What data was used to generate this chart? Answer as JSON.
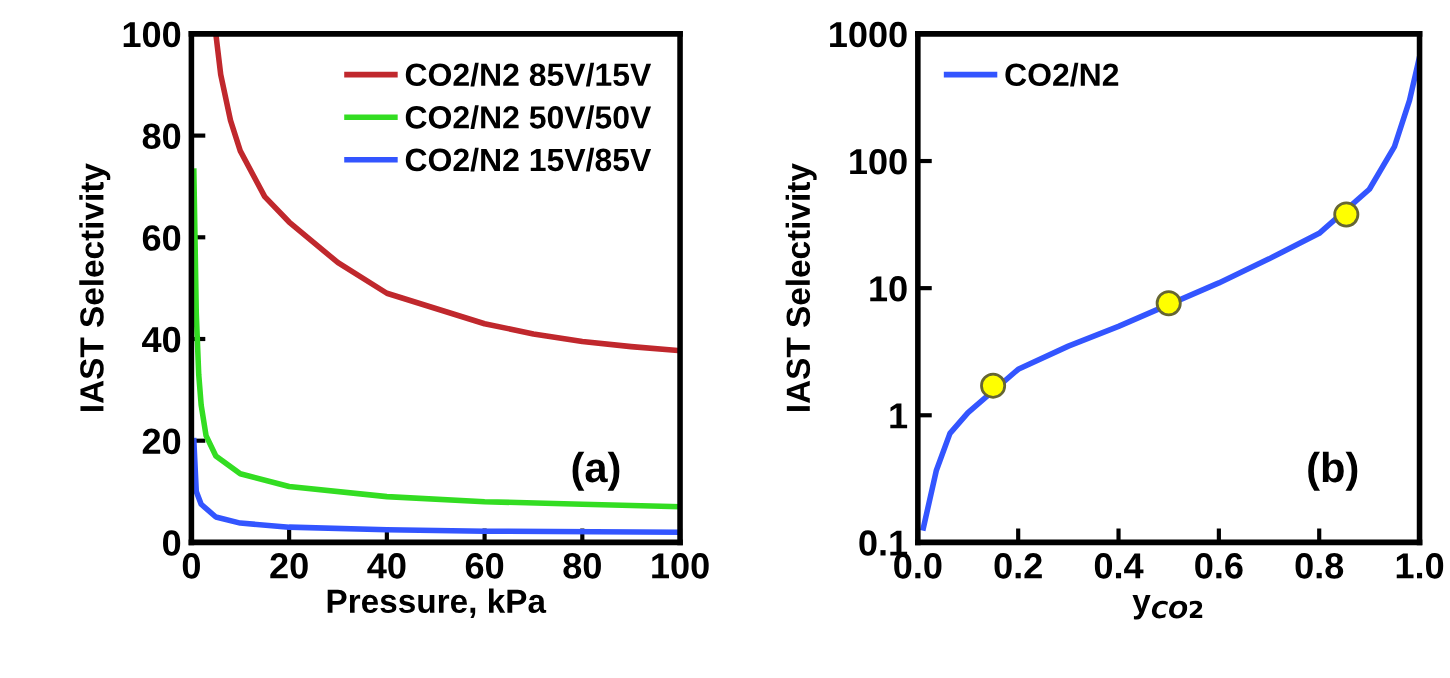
{
  "chart_data": [
    {
      "type": "line",
      "xlabel": "Pressure, kPa",
      "ylabel": "IAST Selectivity",
      "xlim": [
        0,
        100
      ],
      "ylim": [
        0,
        100
      ],
      "xticks": [
        0,
        20,
        40,
        60,
        80,
        100
      ],
      "yticks": [
        0,
        20,
        40,
        60,
        80,
        100
      ],
      "grid": false,
      "legend": "top right",
      "annotations": [
        "(a)"
      ],
      "series": [
        {
          "name": "CO2/N2 85V/15V",
          "color": "#c0282d",
          "x": [
            5,
            6,
            8,
            10,
            15,
            20,
            30,
            40,
            50,
            60,
            70,
            80,
            90,
            100
          ],
          "values": [
            100,
            92,
            83,
            77,
            68,
            63,
            55,
            49,
            46,
            43,
            41,
            39.5,
            38.5,
            37.7
          ]
        },
        {
          "name": "CO2/N2 50V/50V",
          "color": "#33dd22",
          "x": [
            0.5,
            1,
            1.5,
            2,
            3,
            5,
            10,
            20,
            40,
            60,
            80,
            100
          ],
          "values": [
            73,
            45,
            33,
            27,
            21,
            17,
            13.5,
            11,
            9,
            8,
            7.5,
            7
          ]
        },
        {
          "name": "CO2/N2 15V/85V",
          "color": "#3355ff",
          "x": [
            0.5,
            1,
            2,
            5,
            10,
            20,
            40,
            60,
            100
          ],
          "values": [
            20,
            10,
            7.5,
            5,
            3.8,
            3,
            2.5,
            2.2,
            2
          ]
        }
      ]
    },
    {
      "type": "line",
      "xlabel": "y$_{CO2}$",
      "ylabel": "IAST Selectivity",
      "xlim": [
        0,
        1
      ],
      "ylim": [
        0.1,
        1000
      ],
      "log": "y",
      "xticks": [
        {
          "value": 0,
          "label": "0.0"
        },
        {
          "value": 0.2,
          "label": "0.2"
        },
        {
          "value": 0.4,
          "label": "0.4"
        },
        {
          "value": 0.6,
          "label": "0.6"
        },
        {
          "value": 0.8,
          "label": "0.8"
        },
        {
          "value": 1,
          "label": "1.0"
        }
      ],
      "yticks": [
        0.1,
        1,
        10,
        100,
        1000
      ],
      "grid": false,
      "legend": "top left",
      "annotations": [
        "(b)"
      ],
      "series": [
        {
          "name": "CO2/N2",
          "color": "#3355ff",
          "x": [
            0.011,
            0.037,
            0.064,
            0.1,
            0.2,
            0.3,
            0.4,
            0.6,
            0.7,
            0.8,
            0.9,
            0.95,
            0.98,
            1.0
          ],
          "values": [
            0.13,
            0.37,
            0.72,
            1.05,
            2.3,
            3.5,
            5,
            11,
            17,
            27,
            60,
            130,
            300,
            660
          ]
        },
        {
          "type": "scatter",
          "color": "#ffff00",
          "marker": "circle",
          "x": [
            0.15,
            0.5,
            0.854
          ],
          "values": [
            1.71,
            7.6,
            38
          ]
        }
      ]
    }
  ]
}
